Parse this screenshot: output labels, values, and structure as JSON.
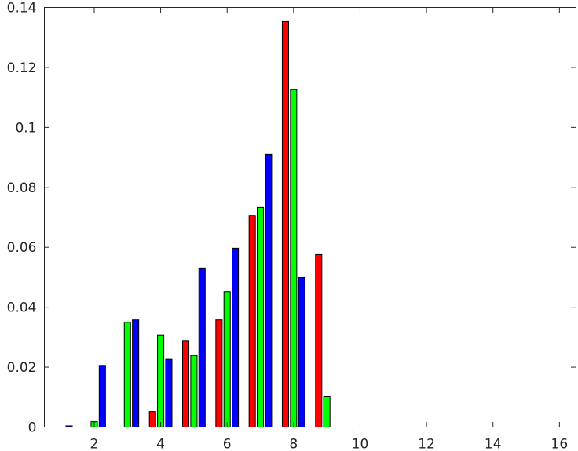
{
  "chart_data": {
    "type": "bar",
    "title": "",
    "xlabel": "",
    "ylabel": "",
    "xlim": [
      0.5,
      16.5
    ],
    "ylim": [
      0,
      0.14
    ],
    "x_ticks": [
      2,
      4,
      6,
      8,
      10,
      12,
      14,
      16
    ],
    "x_tick_labels": [
      "2",
      "4",
      "6",
      "8",
      "10",
      "12",
      "14",
      "16"
    ],
    "y_ticks": [
      0,
      0.02,
      0.04,
      0.06,
      0.08,
      0.1,
      0.12,
      0.14
    ],
    "y_tick_labels": [
      "0",
      "0.02",
      "0.04",
      "0.06",
      "0.08",
      "0.1",
      "0.12",
      "0.14"
    ],
    "grid": false,
    "legend": "none",
    "categories": [
      1,
      2,
      3,
      4,
      5,
      6,
      7,
      8,
      9,
      10,
      11,
      12,
      13,
      14,
      15,
      16
    ],
    "series": [
      {
        "color": "#ff0000",
        "values": [
          0,
          0,
          0,
          0.0052,
          0.0287,
          0.0358,
          0.0706,
          0.1353,
          0.0576,
          0,
          0,
          0,
          0,
          0,
          0,
          0
        ]
      },
      {
        "color": "#00ff00",
        "values": [
          0,
          0.0018,
          0.035,
          0.0307,
          0.0239,
          0.0452,
          0.0733,
          0.1126,
          0.0102,
          0,
          0,
          0,
          0,
          0,
          0,
          0
        ]
      },
      {
        "color": "#0000ff",
        "values": [
          0.0004,
          0.0206,
          0.0358,
          0.0226,
          0.0529,
          0.0597,
          0.0911,
          0.05,
          0,
          0,
          0,
          0,
          0,
          0,
          0,
          0
        ]
      }
    ]
  }
}
